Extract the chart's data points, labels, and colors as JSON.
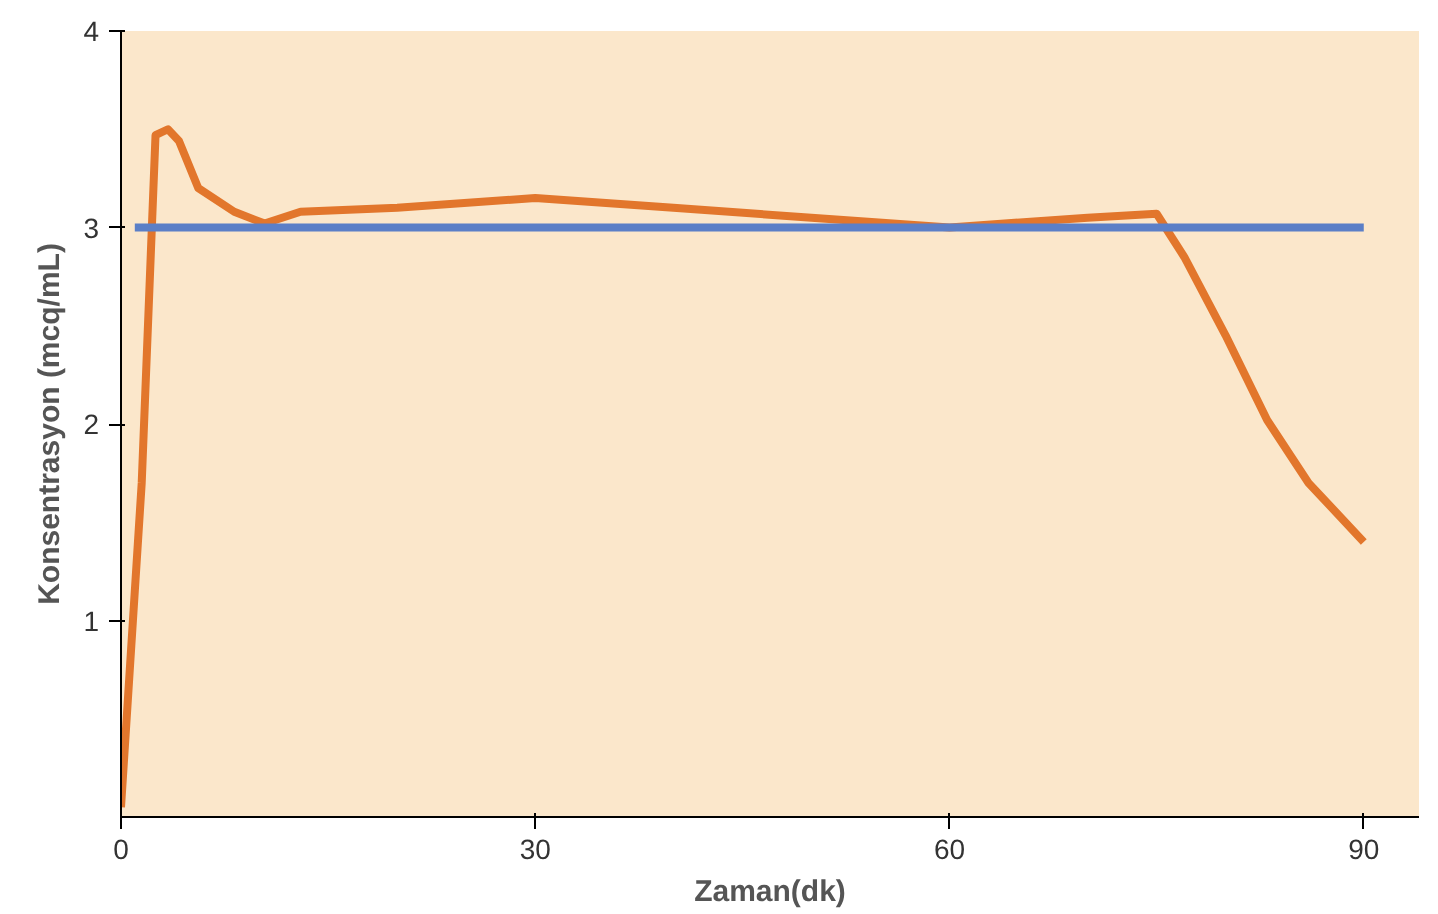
{
  "chart_data": {
    "type": "line",
    "xlabel": "Zaman(dk)",
    "ylabel": "Konsentrasyon (mcq/mL)",
    "xlim": [
      0,
      94
    ],
    "ylim": [
      0,
      4
    ],
    "xticks": [
      0,
      30,
      60,
      90
    ],
    "yticks": [
      1,
      2,
      3,
      4
    ],
    "grid": false,
    "marker": "none",
    "line_style": "solid",
    "series": [
      {
        "color": "#e2762c",
        "x": [
          0,
          1.5,
          2.5,
          3.4,
          4.2,
          5.6,
          8.2,
          10.4,
          13,
          20,
          30,
          40,
          50,
          60,
          70,
          75,
          77,
          80,
          83,
          86,
          90
        ],
        "values": [
          0.05,
          1.7,
          3.47,
          3.5,
          3.44,
          3.2,
          3.08,
          3.02,
          3.08,
          3.1,
          3.15,
          3.1,
          3.05,
          3.0,
          3.05,
          3.07,
          2.85,
          2.45,
          2.02,
          1.7,
          1.4
        ]
      },
      {
        "color": "#5b7fc7",
        "x": [
          1,
          90
        ],
        "values": [
          3,
          3
        ]
      }
    ]
  }
}
